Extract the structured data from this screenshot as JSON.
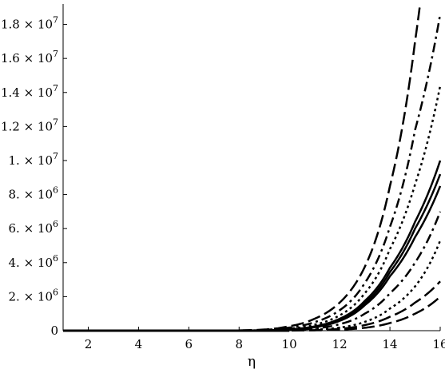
{
  "chart_data": {
    "type": "line",
    "title": "",
    "xlabel": "η",
    "ylabel": "",
    "xlim": [
      1,
      16
    ],
    "ylim": [
      0,
      19200000
    ],
    "grid": false,
    "legend": "none",
    "x_ticks": [
      2,
      4,
      6,
      8,
      10,
      12,
      14,
      16
    ],
    "x_tick_labels": [
      "2",
      "4",
      "6",
      "8",
      "10",
      "12",
      "14",
      "16"
    ],
    "y_ticks": [
      0,
      2000000,
      4000000,
      6000000,
      8000000,
      10000000,
      12000000,
      14000000,
      16000000,
      18000000
    ],
    "y_tick_labels": [
      {
        "mantissa": "0",
        "exp": ""
      },
      {
        "mantissa": "2. × 10",
        "exp": "6"
      },
      {
        "mantissa": "4. × 10",
        "exp": "6"
      },
      {
        "mantissa": "6. × 10",
        "exp": "6"
      },
      {
        "mantissa": "8. × 10",
        "exp": "6"
      },
      {
        "mantissa": "1. × 10",
        "exp": "7"
      },
      {
        "mantissa": "1.2 × 10",
        "exp": "7"
      },
      {
        "mantissa": "1.4 × 10",
        "exp": "7"
      },
      {
        "mantissa": "1.6 × 10",
        "exp": "7"
      },
      {
        "mantissa": "1.8 × 10",
        "exp": "7"
      }
    ],
    "series": [
      {
        "style": "long-dash",
        "x": [
          10,
          11,
          12,
          13,
          14,
          15,
          15.2
        ],
        "y": [
          260000,
          700000,
          1650000,
          3750000,
          8500000,
          17000000,
          19200000
        ]
      },
      {
        "style": "dash-dot",
        "x": [
          10,
          11,
          12,
          13,
          14,
          15,
          16
        ],
        "y": [
          180000,
          500000,
          1200000,
          2800000,
          6100000,
          11800000,
          18600000
        ]
      },
      {
        "style": "dot",
        "x": [
          10,
          11,
          12,
          13,
          14,
          15,
          16
        ],
        "y": [
          120000,
          350000,
          900000,
          2200000,
          4800000,
          8600000,
          14400000
        ]
      },
      {
        "style": "solid",
        "x": [
          10,
          11,
          12,
          13,
          14,
          15,
          16
        ],
        "y": [
          80000,
          250000,
          700000,
          1750000,
          3700000,
          6400000,
          10000000
        ]
      },
      {
        "style": "solid",
        "x": [
          10,
          11,
          12,
          13,
          14,
          15,
          16
        ],
        "y": [
          70000,
          220000,
          640000,
          1620000,
          3450000,
          6000000,
          9200000
        ]
      },
      {
        "style": "solid",
        "x": [
          10,
          11,
          12,
          13,
          14,
          15,
          16
        ],
        "y": [
          60000,
          200000,
          580000,
          1500000,
          3200000,
          5500000,
          8500000
        ]
      },
      {
        "style": "dash-dot",
        "x": [
          10,
          11,
          12,
          13,
          14,
          15,
          16
        ],
        "y": [
          40000,
          130000,
          380000,
          1000000,
          2200000,
          4000000,
          7000000
        ]
      },
      {
        "style": "dot",
        "x": [
          11,
          12,
          13,
          14,
          15,
          16
        ],
        "y": [
          60000,
          180000,
          520000,
          1300000,
          2600000,
          5300000
        ]
      },
      {
        "style": "long-dash",
        "x": [
          11,
          12,
          13,
          14,
          15,
          16
        ],
        "y": [
          30000,
          110000,
          330000,
          820000,
          1650000,
          2900000
        ]
      },
      {
        "style": "long-dash",
        "x": [
          11,
          12,
          13,
          14,
          15,
          16
        ],
        "y": [
          20000,
          60000,
          170000,
          450000,
          1000000,
          2000000
        ]
      }
    ]
  }
}
